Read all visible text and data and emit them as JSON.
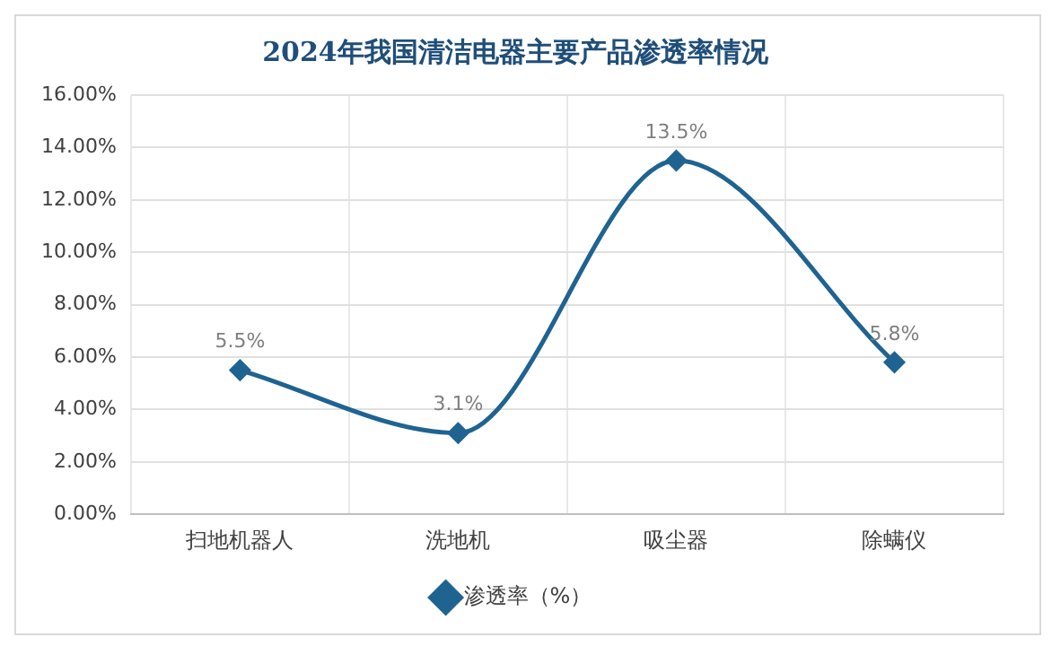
{
  "chart_data": {
    "type": "line",
    "title": "2024年我国清洁电器主要产品渗透率情况",
    "categories": [
      "扫地机器人",
      "洗地机",
      "吸尘器",
      "除螨仪"
    ],
    "series": [
      {
        "name": "渗透率（%）",
        "color": "#1f6391",
        "values": [
          5.5,
          3.1,
          13.5,
          5.8
        ],
        "value_labels": [
          "5.5%",
          "3.1%",
          "13.5%",
          "5.8%"
        ]
      }
    ],
    "ylim": [
      0,
      16
    ],
    "yticks": [
      {
        "value": 0,
        "label": "0.00%"
      },
      {
        "value": 2,
        "label": "2.00%"
      },
      {
        "value": 4,
        "label": "4.00%"
      },
      {
        "value": 6,
        "label": "6.00%"
      },
      {
        "value": 8,
        "label": "8.00%"
      },
      {
        "value": 10,
        "label": "10.00%"
      },
      {
        "value": 12,
        "label": "12.00%"
      },
      {
        "value": 14,
        "label": "14.00%"
      },
      {
        "value": 16,
        "label": "16.00%"
      }
    ],
    "grid": true,
    "legend": "bottom",
    "marker": "diamond",
    "line_style": "solid"
  }
}
